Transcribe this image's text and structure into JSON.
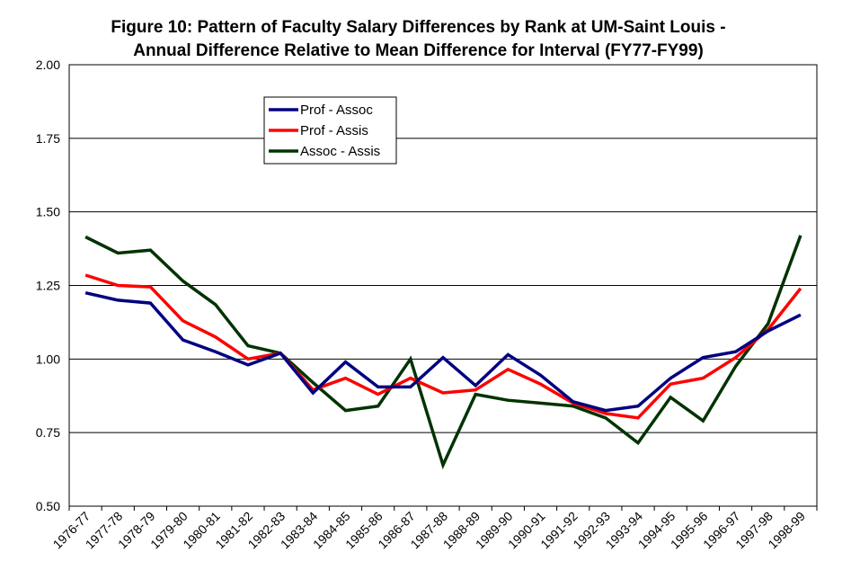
{
  "chart_data": {
    "type": "line",
    "title": "Figure 10: Pattern of Faculty Salary Differences by Rank at UM-Saint Louis -",
    "subtitle": "Annual Difference Relative to Mean Difference for Interval (FY77-FY99)",
    "ylim": [
      0.5,
      2.0
    ],
    "yticks": [
      "0.50",
      "0.75",
      "1.00",
      "1.25",
      "1.50",
      "1.75",
      "2.00"
    ],
    "grid": true,
    "legend_position": "upper-left-center",
    "categories": [
      "1976-77",
      "1977-78",
      "1978-79",
      "1979-80",
      "1980-81",
      "1981-82",
      "1982-83",
      "1983-84",
      "1984-85",
      "1985-86",
      "1986-87",
      "1987-88",
      "1988-89",
      "1989-90",
      "1990-91",
      "1991-92",
      "1992-93",
      "1993-94",
      "1994-95",
      "1995-96",
      "1996-97",
      "1997-98",
      "1998-99"
    ],
    "series": [
      {
        "name": "Prof - Assoc",
        "color": "#000080",
        "values": [
          1.225,
          1.2,
          1.19,
          1.065,
          1.025,
          0.98,
          1.02,
          0.885,
          0.99,
          0.905,
          0.905,
          1.005,
          0.91,
          1.015,
          0.945,
          0.855,
          0.825,
          0.84,
          0.935,
          1.005,
          1.025,
          1.095,
          1.15
        ]
      },
      {
        "name": "Prof - Assis",
        "color": "#ff0000",
        "values": [
          1.285,
          1.25,
          1.245,
          1.13,
          1.075,
          1.0,
          1.02,
          0.895,
          0.935,
          0.88,
          0.935,
          0.885,
          0.895,
          0.965,
          0.915,
          0.85,
          0.815,
          0.8,
          0.915,
          0.935,
          1.005,
          1.1,
          1.24
        ]
      },
      {
        "name": "Assoc - Assis",
        "color": "#003300",
        "values": [
          1.415,
          1.36,
          1.37,
          1.265,
          1.185,
          1.045,
          1.02,
          0.92,
          0.825,
          0.84,
          1.0,
          0.64,
          0.88,
          0.86,
          0.85,
          0.84,
          0.8,
          0.715,
          0.87,
          0.79,
          0.975,
          1.12,
          1.42
        ]
      }
    ]
  }
}
